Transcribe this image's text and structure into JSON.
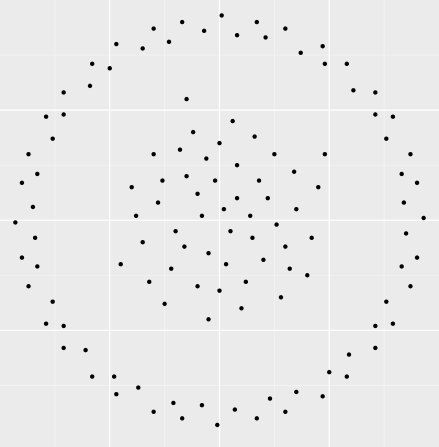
{
  "chart_data": {
    "type": "scatter",
    "color": "#000000",
    "background": "#ebebeb",
    "grid": true,
    "xlim": [
      -1,
      1
    ],
    "ylim": [
      -1.03,
      1.0
    ],
    "xticks": [
      -0.5,
      0,
      0.5
    ],
    "yticks": [
      -0.5,
      0,
      0.5
    ],
    "xminorticks": [
      -0.75,
      -0.25,
      0.25,
      0.75
    ],
    "yminorticks": [
      -0.75,
      -0.25,
      0.25,
      0.75
    ],
    "x": [
      0.93,
      0.9,
      0.87,
      0.79,
      0.71,
      0.58,
      0.47,
      0.3,
      0.17,
      0.01,
      -0.17,
      -0.3,
      -0.47,
      -0.58,
      -0.71,
      -0.79,
      -0.87,
      -0.9,
      -0.93,
      -0.9,
      -0.87,
      -0.79,
      -0.71,
      -0.58,
      -0.47,
      -0.3,
      -0.17,
      -0.01,
      0.17,
      0.3,
      0.47,
      0.58,
      0.71,
      0.79,
      0.87,
      0.9,
      0.84,
      0.83,
      0.76,
      0.71,
      0.61,
      0.48,
      0.37,
      0.21,
      0.08,
      -0.07,
      -0.23,
      -0.35,
      -0.5,
      -0.59,
      -0.71,
      -0.76,
      -0.83,
      -0.85,
      -0.84,
      -0.83,
      -0.76,
      -0.71,
      -0.61,
      -0.48,
      -0.37,
      -0.21,
      -0.08,
      0.07,
      0.23,
      0.35,
      0.5,
      0.59,
      0.71,
      0.76,
      0.83,
      0.85,
      0.02,
      -0.1,
      0.15,
      -0.05,
      0.22,
      -0.2,
      0.08,
      -0.15,
      0.3,
      -0.28,
      0.12,
      -0.1,
      0.05,
      -0.02,
      0.18,
      -0.22,
      0.35,
      -0.35,
      0.0,
      0.1,
      -0.4,
      0.4,
      0.25,
      -0.3,
      0.28,
      -0.25,
      0.45,
      -0.45,
      0.06,
      -0.12,
      0.2,
      -0.08,
      0.14,
      -0.16,
      0.03,
      0.26,
      -0.32,
      0.34,
      -0.05,
      0.16,
      -0.38,
      0.42,
      -0.18,
      0.08,
      -0.06,
      0.32,
      -0.26,
      0.0,
      0.48,
      -0.15
    ],
    "y": [
      0.01,
      0.17,
      0.3,
      0.47,
      0.58,
      0.71,
      0.79,
      0.87,
      0.9,
      0.93,
      0.9,
      0.87,
      0.8,
      0.71,
      0.58,
      0.47,
      0.3,
      0.17,
      -0.01,
      -0.17,
      -0.3,
      -0.47,
      -0.58,
      -0.71,
      -0.79,
      -0.87,
      -0.9,
      -0.93,
      -0.9,
      -0.87,
      -0.8,
      -0.71,
      -0.58,
      -0.47,
      -0.3,
      -0.17,
      0.08,
      0.21,
      0.37,
      0.48,
      0.59,
      0.71,
      0.76,
      0.83,
      0.84,
      0.86,
      0.81,
      0.78,
      0.69,
      0.61,
      0.48,
      0.37,
      0.21,
      0.06,
      -0.08,
      -0.21,
      -0.37,
      -0.48,
      -0.59,
      -0.71,
      -0.76,
      -0.83,
      -0.84,
      -0.86,
      -0.81,
      -0.78,
      -0.69,
      -0.61,
      -0.48,
      -0.37,
      -0.21,
      -0.06,
      0.05,
      0.12,
      -0.08,
      -0.15,
      0.1,
      -0.05,
      0.25,
      0.2,
      -0.12,
      0.08,
      -0.28,
      -0.3,
      -0.05,
      0.18,
      0.18,
      -0.22,
      0.05,
      -0.1,
      0.35,
      -0.4,
      0.15,
      -0.25,
      0.3,
      0.3,
      -0.35,
      -0.38,
      0.15,
      -0.2,
      0.45,
      0.4,
      -0.18,
      0.02,
      0.02,
      -0.12,
      -0.2,
      -0.02,
      -0.28,
      0.22,
      -0.45,
      0.38,
      0.02,
      -0.08,
      0.32,
      0.1,
      0.28,
      -0.22,
      0.18,
      -0.32,
      0.3,
      0.55
    ]
  }
}
